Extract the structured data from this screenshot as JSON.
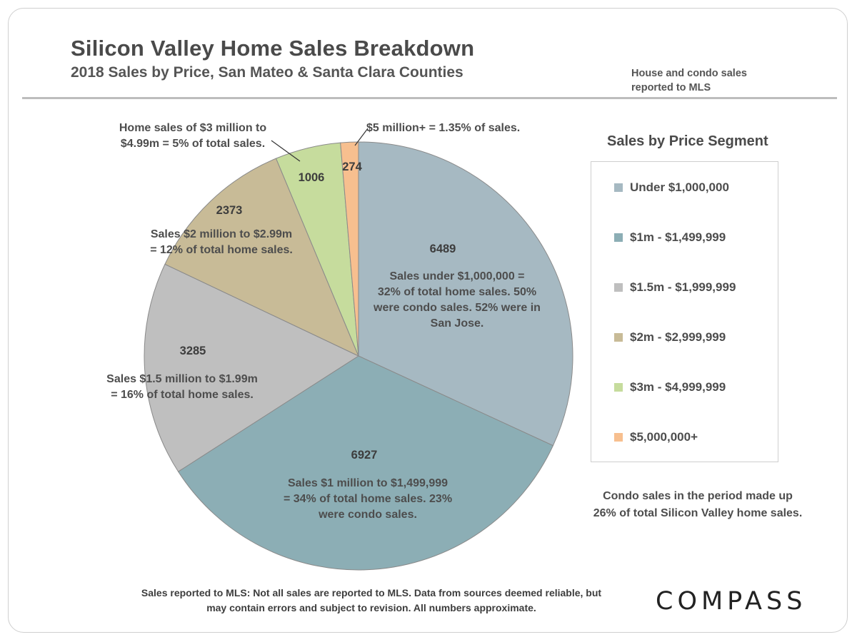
{
  "header": {
    "title": "Silicon Valley Home Sales Breakdown",
    "subtitle": "2018 Sales by Price, San Mateo & Santa Clara Counties",
    "note": "House and condo sales reported to MLS"
  },
  "chart_data": {
    "type": "pie",
    "legend_title": "Sales by Price Segment",
    "legend_position": "right",
    "slices": [
      {
        "label": "Under $1,000,000",
        "value": 6489,
        "color": "#a6b9c2",
        "annotation": "Sales under $1,000,000  =\n32% of total home sales. 50%\nwere condo sales. 52% were in\nSan Jose."
      },
      {
        "label": "$1m - $1,499,999",
        "value": 6927,
        "color": "#8caeb5",
        "annotation": "Sales $1 million to $1,499,999\n= 34% of total home sales.  23%\nwere condo sales."
      },
      {
        "label": "$1.5m - $1,999,999",
        "value": 3285,
        "color": "#bfbfbf",
        "annotation": "Sales $1.5 million to $1.99m\n= 16% of total home sales."
      },
      {
        "label": "$2m - $2,999,999",
        "value": 2373,
        "color": "#c8bb97",
        "annotation": "Sales $2 million to $2.99m\n= 12% of total home sales."
      },
      {
        "label": "$3m - $4,999,999",
        "value": 1006,
        "color": "#c6dc9d",
        "annotation": "Home sales of $3 million to\n$4.99m = 5% of total sales."
      },
      {
        "label": "$5,000,000+",
        "value": 274,
        "color": "#f7bf8f",
        "annotation": "$5 million+ = 1.35% of sales."
      }
    ]
  },
  "condo_note": "Condo sales in the period made up\n26% of total Silicon Valley home sales.",
  "footnote": "Sales reported to MLS: Not all sales are reported to MLS. Data from sources deemed reliable, but\nmay contain errors and subject to revision. All numbers approximate.",
  "brand": {
    "logo_text": "COMPASS"
  }
}
